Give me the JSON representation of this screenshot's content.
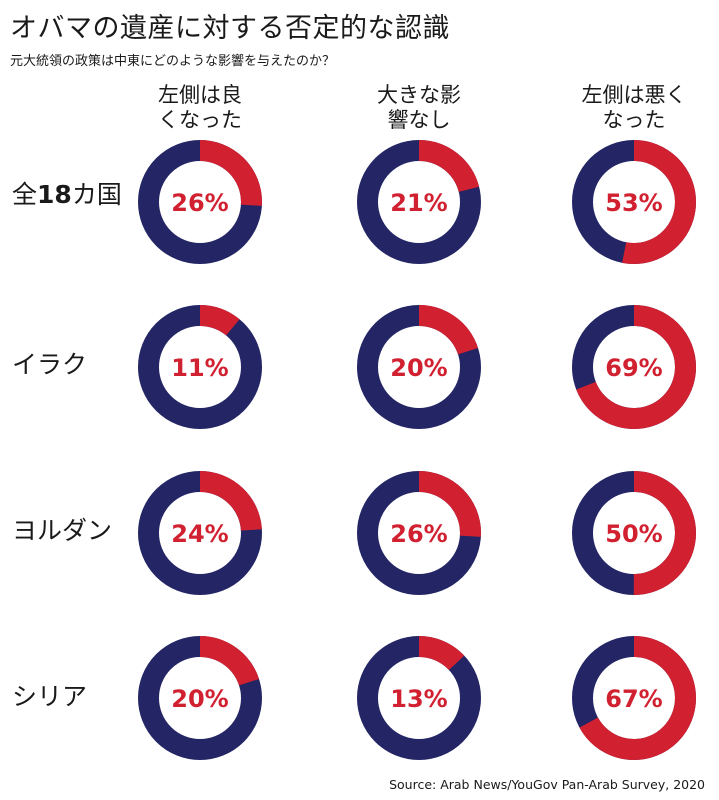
{
  "title": "オバマの遺産に対する否定的な認識",
  "subtitle": "元大統領の政策は中東にどのような影響を与えたのか？",
  "source": "Source: Arab News/YouGov Pan-Arab Survey, 2020",
  "colors": {
    "highlight": "#d12030",
    "remainder": "#232565",
    "label": "#d12030"
  },
  "chart_data": {
    "type": "pie",
    "style": "donut",
    "columns": [
      "左側は良\nくなった",
      "大きな影\n響なし",
      "左側は悪く\nなった"
    ],
    "rows": [
      {
        "label_prefix": "全",
        "label_bold": "18",
        "label_suffix": "カ国",
        "values": [
          26,
          21,
          53
        ]
      },
      {
        "label_prefix": "イラク",
        "label_bold": "",
        "label_suffix": "",
        "values": [
          11,
          20,
          69
        ]
      },
      {
        "label_prefix": "ヨルダン",
        "label_bold": "",
        "label_suffix": "",
        "values": [
          24,
          26,
          50
        ]
      },
      {
        "label_prefix": "シリア",
        "label_bold": "",
        "label_suffix": "",
        "values": [
          20,
          13,
          67
        ]
      }
    ],
    "unit": "%"
  }
}
